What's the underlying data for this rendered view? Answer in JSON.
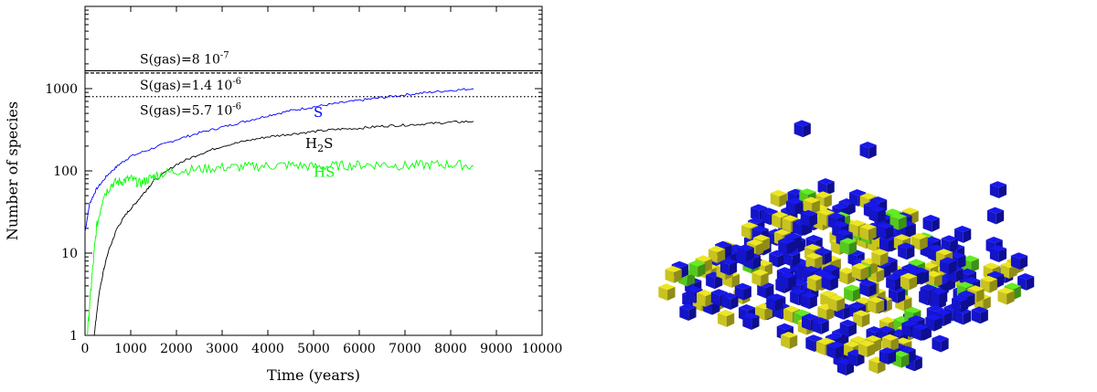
{
  "chart_data": {
    "type": "line",
    "title": "",
    "xlabel": "Time (years)",
    "ylabel": "Number of species",
    "xlim": [
      0,
      10000
    ],
    "ylim": [
      1,
      10000
    ],
    "yscale": "log",
    "grid": false,
    "x_ticks": [
      "0",
      "1000",
      "2000",
      "3000",
      "4000",
      "5000",
      "6000",
      "7000",
      "8000",
      "9000",
      "10000"
    ],
    "y_ticks": [
      {
        "value": 1,
        "label": "1"
      },
      {
        "value": 10,
        "label": "10"
      },
      {
        "value": 100,
        "label": "100"
      },
      {
        "value": 1000,
        "label": "1000"
      }
    ],
    "series": [
      {
        "name": "S",
        "color": "#0000ff",
        "x": [
          0,
          100,
          250,
          500,
          750,
          1000,
          1500,
          2000,
          2500,
          3000,
          3500,
          4000,
          4500,
          5000,
          5500,
          6000,
          6500,
          7000,
          7500,
          8000,
          8500
        ],
        "y": [
          18,
          40,
          60,
          90,
          120,
          150,
          190,
          240,
          290,
          340,
          400,
          470,
          540,
          600,
          660,
          720,
          780,
          840,
          900,
          950,
          1000
        ]
      },
      {
        "name": "H2S",
        "color": "#000000",
        "x": [
          200,
          300,
          400,
          500,
          700,
          900,
          1100,
          1300,
          1500,
          2000,
          2500,
          3000,
          3500,
          4000,
          4500,
          5000,
          5500,
          6000,
          6500,
          7000,
          7500,
          8000,
          8500
        ],
        "y": [
          1,
          3,
          6,
          10,
          20,
          30,
          40,
          55,
          75,
          120,
          160,
          200,
          230,
          260,
          280,
          300,
          320,
          330,
          350,
          360,
          375,
          390,
          400
        ]
      },
      {
        "name": "HS",
        "color": "#00ff00",
        "x": [
          50,
          150,
          250,
          400,
          600,
          800,
          1000,
          1200,
          1400,
          1600,
          2000,
          2500,
          3000,
          3500,
          4000,
          4500,
          5000,
          5500,
          6000,
          6500,
          7000,
          7500,
          8000,
          8500
        ],
        "y": [
          1,
          5,
          20,
          50,
          70,
          75,
          80,
          70,
          80,
          90,
          100,
          105,
          110,
          112,
          115,
          118,
          112,
          115,
          118,
          120,
          115,
          118,
          120,
          115
        ]
      }
    ],
    "series_labels": [
      {
        "text": "S",
        "color": "#0000ff",
        "x": 5000,
        "y": 450
      },
      {
        "text_main": "H",
        "text_sub": "2",
        "text_tail": "S",
        "color": "#000000",
        "x": 4820,
        "y": 190
      },
      {
        "text": "HS",
        "color": "#00ff00",
        "x": 5000,
        "y": 85
      }
    ],
    "reference_lines": [
      {
        "label_main": "S(gas)=8 10",
        "label_exp": "-7",
        "y": 1650,
        "style": "solid"
      },
      {
        "label_main": "S(gas)=1.4 10",
        "label_exp": "-6",
        "y": 1550,
        "style": "dashed"
      },
      {
        "label_main": "S(gas)=5.7 10",
        "label_exp": "-6",
        "y": 800,
        "style": "dotted"
      }
    ]
  },
  "colors": {
    "blue_cube": "#1414c8",
    "yellow_cube": "#c8c31e",
    "green_cube": "#55c81e"
  },
  "cube_counts_approx": {
    "blue": 380,
    "yellow": 220,
    "green": 30
  }
}
